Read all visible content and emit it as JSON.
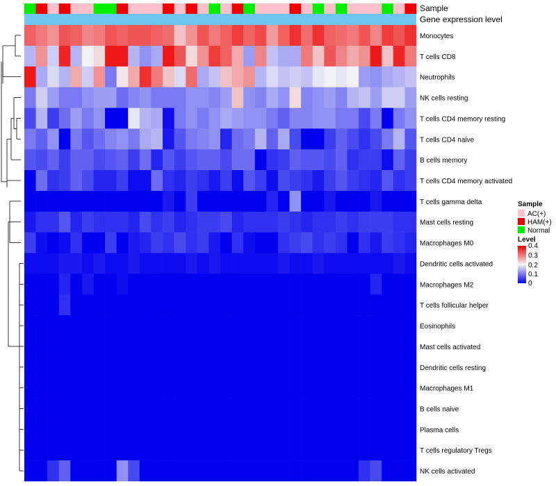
{
  "chart_data": {
    "type": "heatmap",
    "title": "",
    "annotation_tracks": {
      "sample_label": "Sample",
      "expression_label": "Gene expression level"
    },
    "sample_groups": [
      "Normal",
      "HAM(+)",
      "AC(+)",
      "HAM(+)",
      "AC(+)",
      "AC(+)",
      "Normal",
      "Normal",
      "HAM(+)",
      "AC(+)",
      "AC(+)",
      "AC(+)",
      "HAM(+)",
      "AC(+)",
      "HAM(+)",
      "AC(+)",
      "Normal",
      "AC(+)",
      "HAM(+)",
      "Normal",
      "AC(+)",
      "AC(+)",
      "AC(+)",
      "HAM(+)",
      "AC(+)",
      "Normal",
      "AC(+)",
      "Normal",
      "AC(+)",
      "AC(+)",
      "AC(+)",
      "Normal",
      "AC(+)",
      "HAM(+)"
    ],
    "rows": [
      "Monocytes",
      "T cells CD8",
      "Neutrophils",
      "NK cells resting",
      "T cells CD4 memory resting",
      "T cells CD4 naive",
      "B cells memory",
      "T cells CD4 memory activated",
      "T cells gamma delta",
      "Mast cells resting",
      "Macrophages M0",
      "Dendritic cells activated",
      "Macrophages M2",
      "T cells follicular helper",
      "Eosinophils",
      "Mast cells activated",
      "Dendritic cells resting",
      "Macrophages M1",
      "B cells naive",
      "Plasma cells",
      "T cells regulatory  Tregs",
      "NK cells activated"
    ],
    "values": [
      [
        0.32,
        0.3,
        0.28,
        0.33,
        0.32,
        0.29,
        0.3,
        0.33,
        0.32,
        0.33,
        0.33,
        0.32,
        0.31,
        0.24,
        0.28,
        0.33,
        0.3,
        0.32,
        0.35,
        0.32,
        0.34,
        0.27,
        0.32,
        0.36,
        0.31,
        0.36,
        0.32,
        0.31,
        0.3,
        0.33,
        0.29,
        0.35,
        0.33,
        0.36
      ],
      [
        0.15,
        0.28,
        0.17,
        0.37,
        0.15,
        0.2,
        0.22,
        0.38,
        0.38,
        0.15,
        0.12,
        0.14,
        0.38,
        0.33,
        0.22,
        0.28,
        0.35,
        0.32,
        0.26,
        0.13,
        0.29,
        0.16,
        0.14,
        0.14,
        0.3,
        0.24,
        0.33,
        0.29,
        0.26,
        0.28,
        0.38,
        0.24,
        0.37,
        0.3
      ],
      [
        0.38,
        0.14,
        0.18,
        0.15,
        0.26,
        0.17,
        0.28,
        0.1,
        0.21,
        0.26,
        0.36,
        0.3,
        0.24,
        0.18,
        0.31,
        0.14,
        0.16,
        0.24,
        0.26,
        0.28,
        0.15,
        0.18,
        0.16,
        0.17,
        0.16,
        0.19,
        0.2,
        0.19,
        0.2,
        0.13,
        0.12,
        0.14,
        0.15,
        0.16
      ],
      [
        0.1,
        0.17,
        0.13,
        0.1,
        0.1,
        0.12,
        0.13,
        0.13,
        0.09,
        0.11,
        0.12,
        0.1,
        0.1,
        0.1,
        0.12,
        0.12,
        0.11,
        0.13,
        0.24,
        0.12,
        0.11,
        0.14,
        0.12,
        0.22,
        0.11,
        0.12,
        0.13,
        0.11,
        0.15,
        0.16,
        0.13,
        0.17,
        0.17,
        0.13
      ],
      [
        0.06,
        0.15,
        0.05,
        0.09,
        0.13,
        0.1,
        0.12,
        0.0,
        0.0,
        0.19,
        0.15,
        0.14,
        0.01,
        0.1,
        0.12,
        0.1,
        0.12,
        0.14,
        0.13,
        0.12,
        0.12,
        0.1,
        0.08,
        0.11,
        0.11,
        0.12,
        0.12,
        0.1,
        0.1,
        0.06,
        0.1,
        0.0,
        0.1,
        0.12
      ],
      [
        0.1,
        0.08,
        0.12,
        0.0,
        0.1,
        0.07,
        0.09,
        0.11,
        0.12,
        0.1,
        0.14,
        0.15,
        0.02,
        0.07,
        0.1,
        0.11,
        0.12,
        0.03,
        0.09,
        0.1,
        0.15,
        0.08,
        0.14,
        0.06,
        0.0,
        0.0,
        0.05,
        0.08,
        0.06,
        0.04,
        0.06,
        0.1,
        0.15,
        0.07
      ],
      [
        0.07,
        0.06,
        0.08,
        0.05,
        0.08,
        0.08,
        0.06,
        0.07,
        0.08,
        0.05,
        0.09,
        0.03,
        0.07,
        0.05,
        0.07,
        0.08,
        0.08,
        0.06,
        0.09,
        0.09,
        0.0,
        0.04,
        0.05,
        0.08,
        0.07,
        0.07,
        0.06,
        0.08,
        0.04,
        0.05,
        0.05,
        0.01,
        0.08,
        0.05
      ],
      [
        0.0,
        0.09,
        0.04,
        0.05,
        0.08,
        0.06,
        0.03,
        0.03,
        0.05,
        0.01,
        0.01,
        0.09,
        0.04,
        0.03,
        0.05,
        0.04,
        0.02,
        0.05,
        0.01,
        0.07,
        0.05,
        0.01,
        0.06,
        0.05,
        0.04,
        0.02,
        0.05,
        0.07,
        0.05,
        0.04,
        0.03,
        0.07,
        0.04,
        0.05
      ],
      [
        0.0,
        0.0,
        0.0,
        0.0,
        0.0,
        0.0,
        0.0,
        0.0,
        0.0,
        0.0,
        0.0,
        0.0,
        0.02,
        0.0,
        0.05,
        0.0,
        0.0,
        0.0,
        0.0,
        0.0,
        0.0,
        0.03,
        0.0,
        0.12,
        0.0,
        0.0,
        0.02,
        0.0,
        0.0,
        0.0,
        0.02,
        0.0,
        0.0,
        0.0
      ],
      [
        0.02,
        0.04,
        0.04,
        0.07,
        0.03,
        0.05,
        0.04,
        0.04,
        0.04,
        0.03,
        0.06,
        0.04,
        0.05,
        0.03,
        0.04,
        0.05,
        0.05,
        0.06,
        0.03,
        0.04,
        0.04,
        0.04,
        0.05,
        0.04,
        0.03,
        0.04,
        0.04,
        0.05,
        0.04,
        0.05,
        0.05,
        0.05,
        0.04,
        0.04
      ],
      [
        0.05,
        0.01,
        0.0,
        0.01,
        0.04,
        0.0,
        0.0,
        0.05,
        0.0,
        0.02,
        0.03,
        0.05,
        0.04,
        0.06,
        0.04,
        0.05,
        0.02,
        0.0,
        0.04,
        0.01,
        0.0,
        0.0,
        0.04,
        0.05,
        0.06,
        0.04,
        0.05,
        0.04,
        0.0,
        0.04,
        0.02,
        0.05,
        0.04,
        0.03
      ],
      [
        0.01,
        0.01,
        0.01,
        0.02,
        0.02,
        0.01,
        0.02,
        0.01,
        0.01,
        0.02,
        0.01,
        0.01,
        0.01,
        0.01,
        0.02,
        0.01,
        0.02,
        0.01,
        0.01,
        0.01,
        0.01,
        0.01,
        0.02,
        0.01,
        0.01,
        0.02,
        0.01,
        0.01,
        0.01,
        0.01,
        0.01,
        0.01,
        0.02,
        0.01
      ],
      [
        0.0,
        0.0,
        0.0,
        0.03,
        0.0,
        0.02,
        0.0,
        0.0,
        0.01,
        0.0,
        0.0,
        0.0,
        0.0,
        0.0,
        0.0,
        0.0,
        0.0,
        0.0,
        0.0,
        0.0,
        0.0,
        0.0,
        0.0,
        0.0,
        0.0,
        0.0,
        0.0,
        0.0,
        0.0,
        0.0,
        0.03,
        0.0,
        0.0,
        0.0
      ],
      [
        0.0,
        0.0,
        0.0,
        0.04,
        0.0,
        0.0,
        0.0,
        0.0,
        0.0,
        0.0,
        0.0,
        0.0,
        0.0,
        0.0,
        0.0,
        0.0,
        0.0,
        0.0,
        0.0,
        0.0,
        0.0,
        0.0,
        0.0,
        0.0,
        0.0,
        0.0,
        0.0,
        0.0,
        0.0,
        0.0,
        0.0,
        0.0,
        0.0,
        0.0
      ],
      [
        0.0,
        0.0,
        0.0,
        0.0,
        0.0,
        0.0,
        0.0,
        0.0,
        0.0,
        0.0,
        0.0,
        0.0,
        0.0,
        0.0,
        0.0,
        0.0,
        0.0,
        0.0,
        0.0,
        0.0,
        0.0,
        0.0,
        0.0,
        0.0,
        0.0,
        0.0,
        0.0,
        0.0,
        0.0,
        0.0,
        0.0,
        0.0,
        0.0,
        0.0
      ],
      [
        0.0,
        0.0,
        0.0,
        0.0,
        0.0,
        0.0,
        0.0,
        0.0,
        0.0,
        0.0,
        0.0,
        0.0,
        0.0,
        0.0,
        0.0,
        0.0,
        0.0,
        0.0,
        0.0,
        0.0,
        0.0,
        0.0,
        0.0,
        0.0,
        0.0,
        0.0,
        0.0,
        0.0,
        0.0,
        0.0,
        0.0,
        0.0,
        0.0,
        0.0
      ],
      [
        0.0,
        0.0,
        0.0,
        0.0,
        0.0,
        0.0,
        0.0,
        0.0,
        0.0,
        0.0,
        0.0,
        0.0,
        0.0,
        0.0,
        0.0,
        0.0,
        0.0,
        0.0,
        0.0,
        0.0,
        0.0,
        0.0,
        0.0,
        0.0,
        0.0,
        0.0,
        0.0,
        0.0,
        0.0,
        0.0,
        0.0,
        0.0,
        0.0,
        0.0
      ],
      [
        0.0,
        0.0,
        0.0,
        0.0,
        0.0,
        0.0,
        0.0,
        0.0,
        0.0,
        0.0,
        0.0,
        0.0,
        0.0,
        0.0,
        0.0,
        0.0,
        0.0,
        0.0,
        0.0,
        0.0,
        0.0,
        0.0,
        0.0,
        0.0,
        0.0,
        0.0,
        0.0,
        0.0,
        0.0,
        0.0,
        0.0,
        0.0,
        0.0,
        0.0
      ],
      [
        0.0,
        0.0,
        0.0,
        0.0,
        0.0,
        0.0,
        0.0,
        0.0,
        0.0,
        0.0,
        0.0,
        0.0,
        0.0,
        0.0,
        0.0,
        0.0,
        0.0,
        0.0,
        0.0,
        0.0,
        0.0,
        0.0,
        0.0,
        0.0,
        0.0,
        0.0,
        0.0,
        0.0,
        0.0,
        0.0,
        0.0,
        0.0,
        0.0,
        0.0
      ],
      [
        0.0,
        0.0,
        0.0,
        0.0,
        0.0,
        0.0,
        0.0,
        0.0,
        0.0,
        0.0,
        0.0,
        0.0,
        0.0,
        0.0,
        0.0,
        0.0,
        0.0,
        0.0,
        0.0,
        0.0,
        0.0,
        0.0,
        0.0,
        0.0,
        0.0,
        0.0,
        0.0,
        0.0,
        0.0,
        0.0,
        0.0,
        0.0,
        0.0,
        0.0
      ],
      [
        0.0,
        0.0,
        0.0,
        0.0,
        0.0,
        0.0,
        0.0,
        0.0,
        0.0,
        0.0,
        0.0,
        0.0,
        0.0,
        0.0,
        0.0,
        0.0,
        0.0,
        0.0,
        0.0,
        0.0,
        0.0,
        0.0,
        0.0,
        0.0,
        0.0,
        0.0,
        0.0,
        0.0,
        0.0,
        0.0,
        0.0,
        0.0,
        0.0,
        0.0
      ],
      [
        0.0,
        0.0,
        0.04,
        0.08,
        0.0,
        0.0,
        0.0,
        0.0,
        0.12,
        0.06,
        0.0,
        0.0,
        0.0,
        0.0,
        0.0,
        0.0,
        0.0,
        0.0,
        0.0,
        0.0,
        0.0,
        0.0,
        0.0,
        0.0,
        0.0,
        0.0,
        0.0,
        0.0,
        0.0,
        0.04,
        0.06,
        0.0,
        0.0,
        0.0
      ]
    ],
    "color_scale": {
      "min": 0,
      "mid": 0.2,
      "max": 0.4,
      "low_color": "#0000ee",
      "mid_color": "#f2f2f6",
      "high_color": "#ee0000"
    },
    "legend": {
      "position": "right",
      "sample_title": "Sample",
      "sample_entries": [
        {
          "label": "AC(+)",
          "color": "#ffc0cb"
        },
        {
          "label": "HAM(+)",
          "color": "#ee0000"
        },
        {
          "label": "Normal",
          "color": "#00ee00"
        }
      ],
      "level_title": "Level",
      "level_ticks": [
        "0.4",
        "0.3",
        "0.2",
        "0.1",
        "0"
      ]
    },
    "expression_track_color": "#6ec6f0",
    "dendrogram": "rows (left)"
  }
}
